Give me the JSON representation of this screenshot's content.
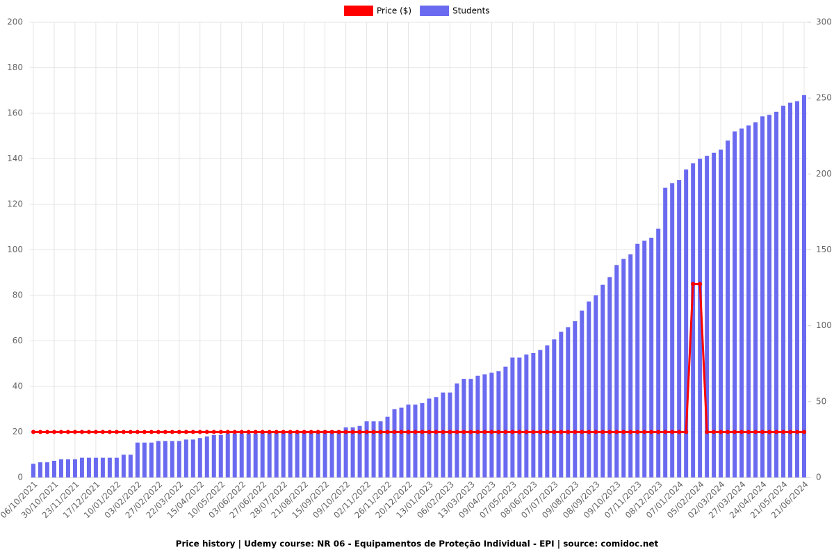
{
  "chart_data": {
    "type": "bar-line",
    "title": "Price history | Udemy course: NR 06 - Equipamentos de Proteção Individual - EPI | source: comidoc.net",
    "categories": [
      "06/10/2021",
      null,
      null,
      "30/10/2021",
      null,
      null,
      "23/11/2021",
      null,
      null,
      "17/12/2021",
      null,
      null,
      "10/01/2022",
      null,
      null,
      "03/02/2022",
      null,
      null,
      "27/02/2022",
      null,
      null,
      "22/03/2022",
      null,
      null,
      "15/04/2022",
      null,
      null,
      "10/05/2022",
      null,
      null,
      "03/06/2022",
      null,
      null,
      "27/06/2022",
      null,
      null,
      "28/07/2022",
      null,
      null,
      "21/08/2022",
      null,
      null,
      "15/09/2022",
      null,
      null,
      "09/10/2022",
      null,
      null,
      "02/11/2022",
      null,
      null,
      "26/11/2022",
      null,
      null,
      "20/12/2022",
      null,
      null,
      "13/01/2023",
      null,
      null,
      "06/02/2023",
      null,
      null,
      "13/03/2023",
      null,
      null,
      "09/04/2023",
      null,
      null,
      "07/05/2023",
      null,
      null,
      "08/06/2023",
      null,
      null,
      "07/07/2023",
      null,
      null,
      "09/08/2023",
      null,
      null,
      "08/09/2023",
      null,
      null,
      "09/10/2023",
      null,
      null,
      "07/11/2023",
      null,
      null,
      "08/12/2023",
      null,
      null,
      "07/01/2024",
      null,
      null,
      "05/02/2024",
      null,
      null,
      "02/03/2024",
      null,
      null,
      "27/03/2024",
      null,
      null,
      "24/04/2024",
      null,
      null,
      "21/05/2024",
      null,
      null,
      "21/06/2024"
    ],
    "series": [
      {
        "name": "Price ($)",
        "color": "#ff0000",
        "type": "line",
        "axis": "y",
        "values": [
          20,
          20,
          20,
          20,
          20,
          20,
          20,
          20,
          20,
          20,
          20,
          20,
          20,
          20,
          20,
          20,
          20,
          20,
          20,
          20,
          20,
          20,
          20,
          20,
          20,
          20,
          20,
          20,
          20,
          20,
          20,
          20,
          20,
          20,
          20,
          20,
          20,
          20,
          20,
          20,
          20,
          20,
          20,
          20,
          20,
          20,
          20,
          20,
          20,
          20,
          20,
          20,
          20,
          20,
          20,
          20,
          20,
          20,
          20,
          20,
          20,
          20,
          20,
          20,
          20,
          20,
          20,
          20,
          20,
          20,
          20,
          20,
          20,
          20,
          20,
          20,
          20,
          20,
          20,
          20,
          20,
          20,
          20,
          20,
          20,
          20,
          20,
          20,
          20,
          20,
          20,
          20,
          20,
          20,
          20,
          85,
          85,
          20,
          20,
          20,
          20,
          20,
          20,
          20,
          20,
          20,
          20,
          20,
          20,
          20,
          20,
          20
        ]
      },
      {
        "name": "Students",
        "color": "#6a6af0",
        "type": "bar",
        "axis": "y2",
        "values": [
          9,
          10,
          10,
          11,
          12,
          12,
          12,
          13,
          13,
          13,
          13,
          13,
          13,
          15,
          15,
          23,
          23,
          23,
          24,
          24,
          24,
          24,
          25,
          25,
          26,
          27,
          28,
          28,
          29,
          29,
          29,
          29,
          29,
          30,
          30,
          30,
          30,
          30,
          30,
          30,
          30,
          30,
          31,
          31,
          31,
          33,
          33,
          34,
          37,
          37,
          37,
          40,
          45,
          46,
          48,
          48,
          49,
          52,
          53,
          56,
          56,
          62,
          65,
          65,
          67,
          68,
          69,
          70,
          73,
          79,
          79,
          81,
          82,
          84,
          87,
          91,
          96,
          99,
          103,
          110,
          116,
          120,
          127,
          132,
          140,
          144,
          147,
          154,
          156,
          158,
          164,
          191,
          194,
          196,
          203,
          207,
          210,
          212,
          214,
          216,
          222,
          228,
          230,
          232,
          234,
          238,
          239,
          241,
          245,
          247,
          248,
          252
        ]
      }
    ],
    "ylim": [
      0,
      200
    ],
    "yticks": [
      0,
      20,
      40,
      60,
      80,
      100,
      120,
      140,
      160,
      180,
      200
    ],
    "y2lim": [
      0,
      300
    ],
    "y2ticks": [
      0,
      50,
      100,
      150,
      200,
      250,
      300
    ],
    "grid": true,
    "legend": "top"
  }
}
